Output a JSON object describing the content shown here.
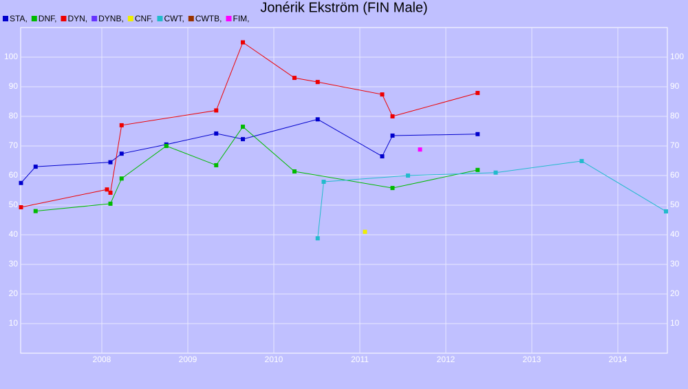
{
  "chart_data": {
    "type": "line",
    "title": "Jonérik Ekström (FIN Male)",
    "xlim": [
      2007.056,
      2014.576
    ],
    "xticks": [
      2008,
      2009,
      2010,
      2011,
      2012,
      2013,
      2014
    ],
    "ylim": [
      0,
      110
    ],
    "yticks": [
      10,
      20,
      30,
      40,
      50,
      60,
      70,
      80,
      90,
      100
    ],
    "grid": true,
    "series": [
      {
        "name": "STA,",
        "color": "#0000cc",
        "x": [
          2007.06,
          2007.23,
          2008.1,
          2008.23,
          2008.75,
          2009.33,
          2009.64,
          2010.51,
          2011.26,
          2011.38,
          2012.37
        ],
        "values": [
          57.5,
          63,
          64.5,
          67.4,
          70.5,
          74.2,
          72.3,
          79,
          66.5,
          73.5,
          74
        ]
      },
      {
        "name": "DNF,",
        "color": "#00bb00",
        "x": [
          2007.23,
          2008.1,
          2008.23,
          2008.75,
          2009.33,
          2009.64,
          2010.24,
          2011.38,
          2012.37
        ],
        "values": [
          48,
          50.5,
          59,
          70,
          63.5,
          76.5,
          61.4,
          55.8,
          61.9
        ]
      },
      {
        "name": "DYN,",
        "color": "#ee0000",
        "x": [
          2007.06,
          2008.06,
          2008.1,
          2008.23,
          2009.33,
          2009.64,
          2010.24,
          2010.51,
          2011.26,
          2011.38,
          2012.37
        ],
        "values": [
          49.3,
          55.3,
          54.2,
          77,
          82,
          105,
          93,
          91.6,
          87.4,
          80,
          87.9
        ]
      },
      {
        "name": "DYNB,",
        "color": "#6633ff",
        "x": [],
        "values": []
      },
      {
        "name": "CNF,",
        "color": "#eeee00",
        "x": [
          2011.06
        ],
        "values": [
          41
        ]
      },
      {
        "name": "CWT,",
        "color": "#22bbcc",
        "x": [
          2010.51,
          2010.58,
          2011.56,
          2012.58,
          2013.58,
          2014.56
        ],
        "values": [
          38.8,
          57.9,
          60,
          61,
          64.9,
          47.9
        ]
      },
      {
        "name": "CWTB,",
        "color": "#993300",
        "x": [],
        "values": []
      },
      {
        "name": "FIM,",
        "color": "#ff00ff",
        "x": [
          2011.7
        ],
        "values": [
          68.8
        ]
      }
    ]
  }
}
